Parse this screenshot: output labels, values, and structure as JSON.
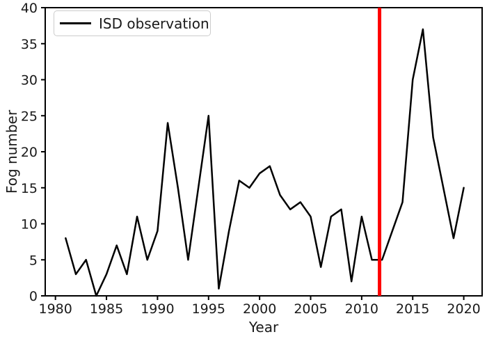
{
  "figure": {
    "background": "#ffffff"
  },
  "colors": {
    "data_line": "#000000",
    "marker_line": "#ff0000",
    "axis": "#000000",
    "text": "#1a1a1a",
    "legend_border": "#cccccc"
  },
  "chart_data": {
    "type": "line",
    "title": "",
    "xlabel": "Year",
    "ylabel": "Fog number",
    "xlim": [
      1979,
      2021.8
    ],
    "ylim": [
      0,
      40
    ],
    "xticks": [
      1980,
      1985,
      1990,
      1995,
      2000,
      2005,
      2010,
      2015,
      2020
    ],
    "yticks": [
      0,
      5,
      10,
      15,
      20,
      25,
      30,
      35,
      40
    ],
    "grid": false,
    "legend": {
      "position": "upper-left",
      "entries": [
        {
          "label": "ISD observation",
          "color": "#000000"
        }
      ]
    },
    "series": [
      {
        "name": "ISD observation",
        "color": "#000000",
        "x": [
          1981,
          1982,
          1983,
          1984,
          1985,
          1986,
          1987,
          1988,
          1989,
          1990,
          1991,
          1992,
          1993,
          1994,
          1995,
          1996,
          1997,
          1998,
          1999,
          2000,
          2001,
          2002,
          2003,
          2004,
          2005,
          2006,
          2007,
          2008,
          2009,
          2010,
          2011,
          2012,
          2013,
          2014,
          2015,
          2016,
          2017,
          2018,
          2019,
          2020
        ],
        "y": [
          8,
          3,
          5,
          0,
          3,
          7,
          3,
          11,
          5,
          9,
          24,
          15,
          5,
          15,
          25,
          1,
          9,
          16,
          15,
          17,
          18,
          14,
          12,
          13,
          11,
          4,
          11,
          12,
          2,
          11,
          5,
          5,
          9,
          13,
          30,
          37,
          22,
          15,
          8,
          15
        ]
      }
    ],
    "annotations": [
      {
        "type": "vline",
        "x": 2011.75,
        "color": "#ff0000",
        "width": 5
      }
    ]
  }
}
